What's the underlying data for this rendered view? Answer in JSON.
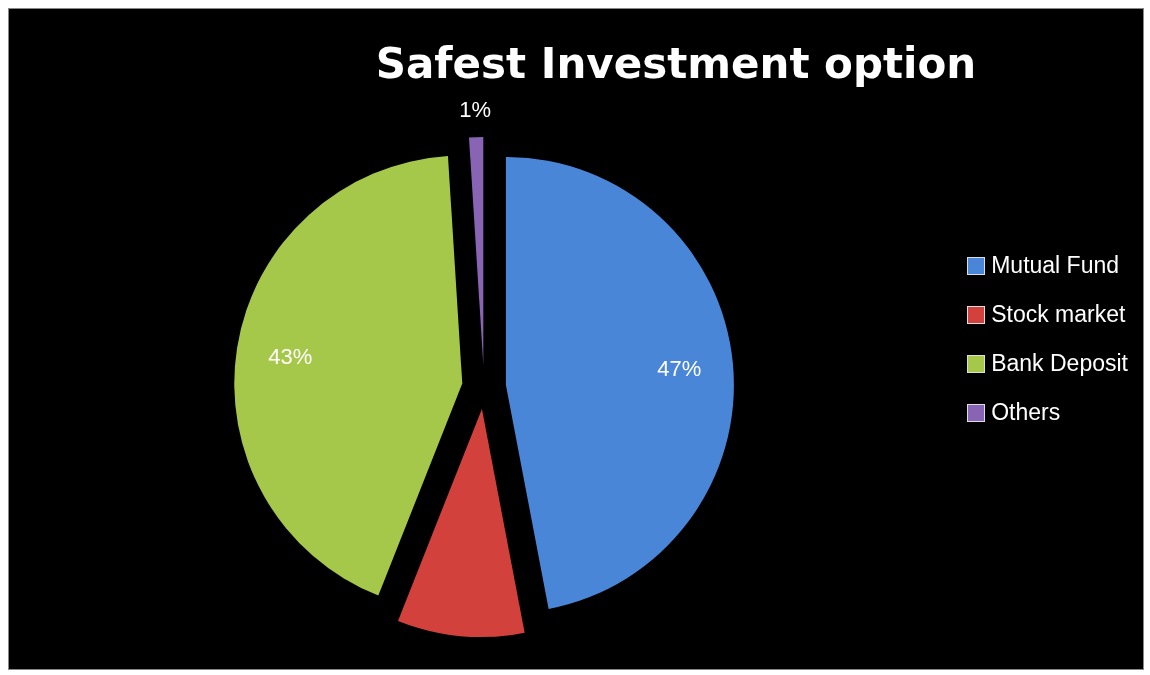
{
  "chart_data": {
    "type": "pie",
    "title": "Safest Investment option",
    "categories": [
      "Mutual Fund",
      "Stock market",
      "Bank Deposit",
      "Others"
    ],
    "values": [
      47,
      9,
      43,
      1
    ],
    "value_labels": [
      "47%",
      null,
      "43%",
      "1%"
    ],
    "colors": [
      "#4a86d8",
      "#d2413c",
      "#a6c84a",
      "#8a64b4"
    ],
    "legend": "right"
  }
}
